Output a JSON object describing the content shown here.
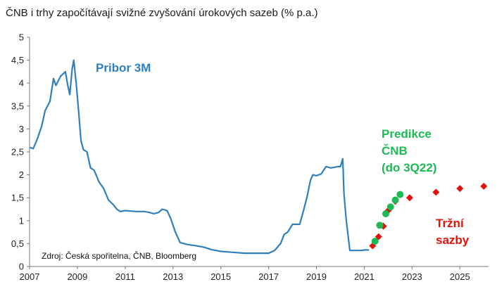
{
  "chart_data": {
    "type": "line",
    "title": "ČNB i trhy započítávají svižné zvyšování úrokových sazeb (% p.a.)",
    "xlabel": "",
    "ylabel": "",
    "xlim": [
      2007,
      2026.2
    ],
    "ylim": [
      0,
      5
    ],
    "y_ticks": [
      "0",
      "0,5",
      "1",
      "1,5",
      "2",
      "2,5",
      "3",
      "3,5",
      "4",
      "4,5",
      "5"
    ],
    "x_ticks": [
      "2007",
      "2009",
      "2011",
      "2013",
      "2015",
      "2017",
      "2019",
      "2021",
      "2023",
      "2025"
    ],
    "grid": false,
    "colors": {
      "pribor": "#2e7fbf",
      "predikce": "#1db954",
      "trzni": "#e3120b"
    },
    "series": [
      {
        "name": "Pribor 3M",
        "style": "line",
        "points": [
          [
            2007.0,
            2.6
          ],
          [
            2007.15,
            2.57
          ],
          [
            2007.3,
            2.75
          ],
          [
            2007.5,
            3.05
          ],
          [
            2007.65,
            3.4
          ],
          [
            2007.85,
            3.6
          ],
          [
            2008.0,
            4.1
          ],
          [
            2008.1,
            3.95
          ],
          [
            2008.3,
            4.15
          ],
          [
            2008.5,
            4.25
          ],
          [
            2008.6,
            3.95
          ],
          [
            2008.68,
            3.75
          ],
          [
            2008.78,
            4.3
          ],
          [
            2008.85,
            4.5
          ],
          [
            2008.95,
            4.0
          ],
          [
            2009.05,
            3.4
          ],
          [
            2009.15,
            2.75
          ],
          [
            2009.25,
            2.55
          ],
          [
            2009.4,
            2.5
          ],
          [
            2009.55,
            2.15
          ],
          [
            2009.7,
            2.1
          ],
          [
            2009.9,
            1.85
          ],
          [
            2010.1,
            1.7
          ],
          [
            2010.3,
            1.45
          ],
          [
            2010.5,
            1.35
          ],
          [
            2010.65,
            1.25
          ],
          [
            2010.8,
            1.2
          ],
          [
            2011.0,
            1.22
          ],
          [
            2011.2,
            1.21
          ],
          [
            2011.5,
            1.2
          ],
          [
            2011.8,
            1.2
          ],
          [
            2012.0,
            1.18
          ],
          [
            2012.2,
            1.15
          ],
          [
            2012.4,
            1.18
          ],
          [
            2012.55,
            1.25
          ],
          [
            2012.75,
            1.22
          ],
          [
            2012.9,
            1.05
          ],
          [
            2013.1,
            0.75
          ],
          [
            2013.3,
            0.52
          ],
          [
            2013.6,
            0.48
          ],
          [
            2014.0,
            0.45
          ],
          [
            2014.3,
            0.42
          ],
          [
            2014.6,
            0.37
          ],
          [
            2015.0,
            0.33
          ],
          [
            2015.5,
            0.31
          ],
          [
            2016.0,
            0.29
          ],
          [
            2016.5,
            0.29
          ],
          [
            2017.0,
            0.29
          ],
          [
            2017.25,
            0.35
          ],
          [
            2017.5,
            0.5
          ],
          [
            2017.65,
            0.7
          ],
          [
            2017.8,
            0.75
          ],
          [
            2018.0,
            0.92
          ],
          [
            2018.3,
            0.92
          ],
          [
            2018.45,
            1.2
          ],
          [
            2018.6,
            1.5
          ],
          [
            2018.75,
            1.88
          ],
          [
            2018.85,
            2.0
          ],
          [
            2019.0,
            1.98
          ],
          [
            2019.2,
            2.02
          ],
          [
            2019.4,
            2.18
          ],
          [
            2019.6,
            2.15
          ],
          [
            2019.9,
            2.18
          ],
          [
            2020.0,
            2.18
          ],
          [
            2020.1,
            2.35
          ],
          [
            2020.15,
            1.6
          ],
          [
            2020.25,
            1.0
          ],
          [
            2020.4,
            0.35
          ],
          [
            2020.7,
            0.35
          ],
          [
            2020.9,
            0.35
          ],
          [
            2021.0,
            0.36
          ],
          [
            2021.2,
            0.36
          ]
        ]
      },
      {
        "name": "Predikce ČNB (do 3Q22)",
        "style": "circle",
        "points": [
          [
            2021.45,
            0.55
          ],
          [
            2021.65,
            0.9
          ],
          [
            2021.9,
            1.15
          ],
          [
            2022.1,
            1.3
          ],
          [
            2022.3,
            1.45
          ],
          [
            2022.5,
            1.57
          ]
        ]
      },
      {
        "name": "Tržní sazby",
        "style": "diamond",
        "points": [
          [
            2021.35,
            0.45
          ],
          [
            2021.6,
            0.65
          ],
          [
            2021.8,
            0.88
          ],
          [
            2022.0,
            1.22
          ],
          [
            2022.3,
            1.42
          ],
          [
            2022.9,
            1.5
          ],
          [
            2024.0,
            1.62
          ],
          [
            2025.0,
            1.7
          ],
          [
            2026.0,
            1.75
          ]
        ]
      }
    ],
    "annotations": {
      "pribor_label": "Pribor 3M",
      "predikce_line1": "Predikce",
      "predikce_line2": "ČNB",
      "predikce_line3": "(do 3Q22)",
      "trzni_line1": "Tržní",
      "trzni_line2": "sazby"
    },
    "source": "Zdroj: Česká spořitelna, ČNB, Bloomberg"
  }
}
